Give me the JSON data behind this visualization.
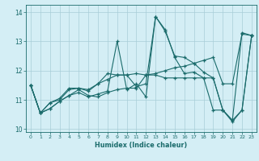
{
  "xlabel": "Humidex (Indice chaleur)",
  "bg_color": "#d4eef5",
  "grid_color": "#a8cdd8",
  "line_color": "#1a6b6b",
  "xlim": [
    -0.5,
    23.5
  ],
  "ylim": [
    9.9,
    14.25
  ],
  "yticks": [
    10,
    11,
    12,
    13,
    14
  ],
  "xticks": [
    0,
    1,
    2,
    3,
    4,
    5,
    6,
    7,
    8,
    9,
    10,
    11,
    12,
    13,
    14,
    15,
    16,
    17,
    18,
    19,
    20,
    21,
    22,
    23
  ],
  "series": [
    [
      11.5,
      10.55,
      10.7,
      10.95,
      11.15,
      11.25,
      11.1,
      11.2,
      11.3,
      13.0,
      11.35,
      11.55,
      11.1,
      13.85,
      13.4,
      12.45,
      11.9,
      11.95,
      11.75,
      10.65,
      10.65,
      10.3,
      13.3,
      13.2
    ],
    [
      11.5,
      10.55,
      10.9,
      11.0,
      11.35,
      11.4,
      11.3,
      11.55,
      11.7,
      11.85,
      11.85,
      11.9,
      11.85,
      11.9,
      12.0,
      12.1,
      12.15,
      12.25,
      12.35,
      12.45,
      11.55,
      11.55,
      13.25,
      13.2
    ],
    [
      11.5,
      10.55,
      10.7,
      10.95,
      11.15,
      11.35,
      11.15,
      11.1,
      11.25,
      11.35,
      11.4,
      11.4,
      11.85,
      11.85,
      11.75,
      11.75,
      11.75,
      11.75,
      11.75,
      11.75,
      10.65,
      10.3,
      10.65,
      13.2
    ],
    [
      11.5,
      10.55,
      10.9,
      11.05,
      11.4,
      11.4,
      11.35,
      11.55,
      11.9,
      11.85,
      11.85,
      11.45,
      11.55,
      13.85,
      13.35,
      12.5,
      12.45,
      12.25,
      11.95,
      11.75,
      10.65,
      10.25,
      10.65,
      13.2
    ]
  ]
}
